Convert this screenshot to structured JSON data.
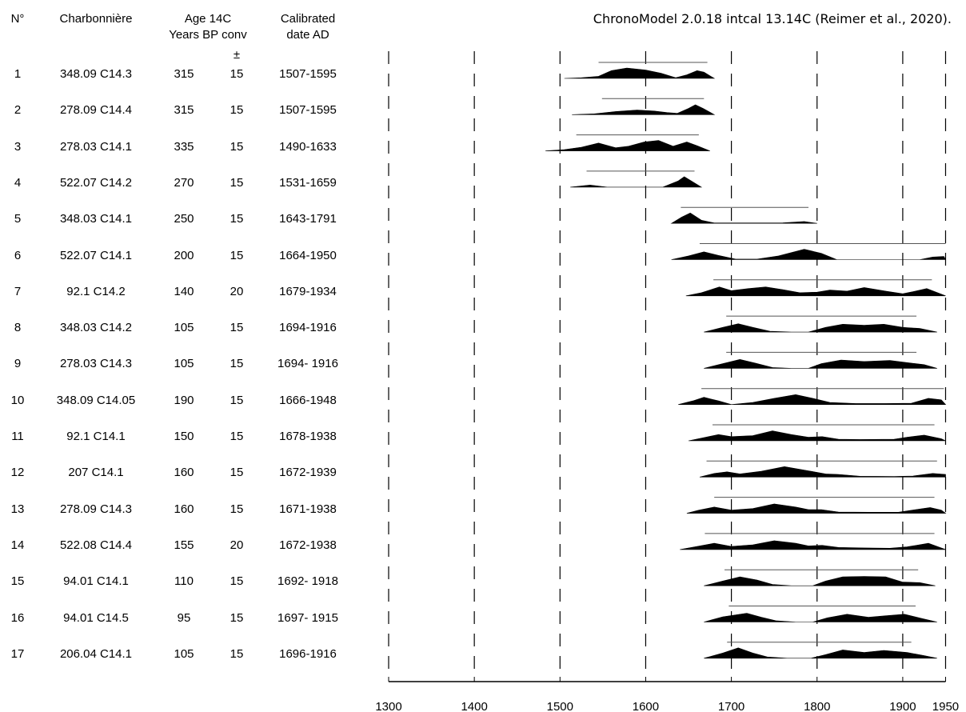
{
  "table": {
    "headers": {
      "n": "N°",
      "charbonniere": "Charbonnière",
      "age_line1": "Age 14C",
      "age_line2": "Years BP conv",
      "cal_line1": "Calibrated",
      "cal_line2": "date AD",
      "error": "±"
    },
    "rows": [
      {
        "n": "1",
        "charbonniere": "348.09 C14.3",
        "age": "315",
        "error": "15",
        "calibrated": "1507-1595"
      },
      {
        "n": "2",
        "charbonniere": "278.09 C14.4",
        "age": "315",
        "error": "15",
        "calibrated": "1507-1595"
      },
      {
        "n": "3",
        "charbonniere": "278.03 C14.1",
        "age": "335",
        "error": "15",
        "calibrated": "1490-1633"
      },
      {
        "n": "4",
        "charbonniere": "522.07 C14.2",
        "age": "270",
        "error": "15",
        "calibrated": "1531-1659"
      },
      {
        "n": "5",
        "charbonniere": "348.03 C14.1",
        "age": "250",
        "error": "15",
        "calibrated": "1643-1791"
      },
      {
        "n": "6",
        "charbonniere": "522.07 C14.1",
        "age": "200",
        "error": "15",
        "calibrated": "1664-1950"
      },
      {
        "n": "7",
        "charbonniere": "92.1 C14.2",
        "age": "140",
        "error": "20",
        "calibrated": "1679-1934"
      },
      {
        "n": "8",
        "charbonniere": "348.03 C14.2",
        "age": "105",
        "error": "15",
        "calibrated": "1694-1916"
      },
      {
        "n": "9",
        "charbonniere": "278.03 C14.3",
        "age": "105",
        "error": "15",
        "calibrated": "1694- 1916"
      },
      {
        "n": "10",
        "charbonniere": "348.09 C14.05",
        "age": "190",
        "error": "15",
        "calibrated": "1666-1948"
      },
      {
        "n": "11",
        "charbonniere": "92.1 C14.1",
        "age": "150",
        "error": "15",
        "calibrated": "1678-1938"
      },
      {
        "n": "12",
        "charbonniere": "207 C14.1",
        "age": "160",
        "error": "15",
        "calibrated": "1672-1939"
      },
      {
        "n": "13",
        "charbonniere": "278.09 C14.3",
        "age": "160",
        "error": "15",
        "calibrated": "1671-1938"
      },
      {
        "n": "14",
        "charbonniere": "522.08 C14.4",
        "age": "155",
        "error": "20",
        "calibrated": "1672-1938"
      },
      {
        "n": "15",
        "charbonniere": "94.01 C14.1",
        "age": "110",
        "error": "15",
        "calibrated": "1692- 1918"
      },
      {
        "n": "16",
        "charbonniere": "94.01 C14.5",
        "age": "95",
        "error": "15",
        "calibrated": "1697- 1915"
      },
      {
        "n": "17",
        "charbonniere": "206.04 C14.1",
        "age": "105",
        "error": "15",
        "calibrated": "1696-1916"
      }
    ]
  },
  "chart_data": {
    "type": "area",
    "title": "ChronoModel 2.0.18 intcal 13.14C (Reimer et al., 2020).",
    "xlabel": "",
    "ylabel": "",
    "xlim": [
      1300,
      1950
    ],
    "x_ticks": [
      1300,
      1400,
      1500,
      1600,
      1700,
      1800,
      1900,
      1950
    ],
    "grid": "dashed vertical lines at 1300, 1400, 1500, 1600, 1700, 1800, 1900, 1950",
    "fill_color": "#000000",
    "series": [
      {
        "hpd": [
          1545,
          1672
        ],
        "density": [
          [
            1505,
            0
          ],
          [
            1525,
            0.06
          ],
          [
            1545,
            0.2
          ],
          [
            1560,
            0.75
          ],
          [
            1578,
            1.0
          ],
          [
            1600,
            0.8
          ],
          [
            1618,
            0.5
          ],
          [
            1635,
            0.06
          ],
          [
            1648,
            0.35
          ],
          [
            1660,
            0.75
          ],
          [
            1668,
            0.6
          ],
          [
            1680,
            0
          ]
        ]
      },
      {
        "hpd": [
          1549,
          1668
        ],
        "density": [
          [
            1514,
            0
          ],
          [
            1540,
            0.08
          ],
          [
            1565,
            0.3
          ],
          [
            1590,
            0.45
          ],
          [
            1610,
            0.35
          ],
          [
            1625,
            0.2
          ],
          [
            1637,
            0.12
          ],
          [
            1650,
            0.6
          ],
          [
            1658,
            0.95
          ],
          [
            1667,
            0.6
          ],
          [
            1680,
            0
          ]
        ]
      },
      {
        "hpd": [
          1519,
          1662
        ],
        "density": [
          [
            1483,
            0
          ],
          [
            1505,
            0.12
          ],
          [
            1525,
            0.35
          ],
          [
            1545,
            0.75
          ],
          [
            1565,
            0.3
          ],
          [
            1580,
            0.45
          ],
          [
            1598,
            0.85
          ],
          [
            1615,
            1.0
          ],
          [
            1632,
            0.45
          ],
          [
            1648,
            0.85
          ],
          [
            1660,
            0.5
          ],
          [
            1675,
            0
          ]
        ]
      },
      {
        "hpd": [
          1531,
          1657
        ],
        "density": [
          [
            1512,
            0
          ],
          [
            1535,
            0.2
          ],
          [
            1555,
            0
          ],
          [
            1620,
            0
          ],
          [
            1638,
            0.6
          ],
          [
            1645,
            1.0
          ],
          [
            1655,
            0.5
          ],
          [
            1665,
            0
          ]
        ]
      },
      {
        "hpd": [
          1641,
          1790
        ],
        "density": [
          [
            1630,
            0
          ],
          [
            1642,
            0.6
          ],
          [
            1652,
            1.0
          ],
          [
            1665,
            0.3
          ],
          [
            1680,
            0.04
          ],
          [
            1760,
            0.05
          ],
          [
            1785,
            0.18
          ],
          [
            1800,
            0
          ]
        ]
      },
      {
        "hpd": [
          1663,
          1950
        ],
        "density": [
          [
            1630,
            0
          ],
          [
            1650,
            0.35
          ],
          [
            1668,
            0.75
          ],
          [
            1685,
            0.4
          ],
          [
            1705,
            0.05
          ],
          [
            1730,
            0.05
          ],
          [
            1755,
            0.35
          ],
          [
            1785,
            1.0
          ],
          [
            1805,
            0.6
          ],
          [
            1823,
            0
          ],
          [
            1920,
            0
          ],
          [
            1935,
            0.25
          ],
          [
            1948,
            0.3
          ],
          [
            1950,
            0
          ]
        ]
      },
      {
        "hpd": [
          1679,
          1934
        ],
        "density": [
          [
            1647,
            0
          ],
          [
            1665,
            0.3
          ],
          [
            1686,
            0.85
          ],
          [
            1700,
            0.5
          ],
          [
            1720,
            0.7
          ],
          [
            1740,
            0.85
          ],
          [
            1760,
            0.6
          ],
          [
            1780,
            0.3
          ],
          [
            1800,
            0.35
          ],
          [
            1815,
            0.55
          ],
          [
            1835,
            0.45
          ],
          [
            1855,
            0.8
          ],
          [
            1880,
            0.45
          ],
          [
            1900,
            0.2
          ],
          [
            1912,
            0.4
          ],
          [
            1928,
            0.7
          ],
          [
            1950,
            0
          ]
        ]
      },
      {
        "hpd": [
          1694,
          1916
        ],
        "density": [
          [
            1668,
            0
          ],
          [
            1690,
            0.45
          ],
          [
            1708,
            0.8
          ],
          [
            1725,
            0.45
          ],
          [
            1745,
            0.08
          ],
          [
            1770,
            0
          ],
          [
            1790,
            0
          ],
          [
            1810,
            0.45
          ],
          [
            1830,
            0.75
          ],
          [
            1855,
            0.65
          ],
          [
            1878,
            0.75
          ],
          [
            1900,
            0.45
          ],
          [
            1920,
            0.35
          ],
          [
            1940,
            0
          ]
        ]
      },
      {
        "hpd": [
          1694,
          1916
        ],
        "density": [
          [
            1668,
            0
          ],
          [
            1690,
            0.45
          ],
          [
            1710,
            0.85
          ],
          [
            1728,
            0.5
          ],
          [
            1748,
            0.08
          ],
          [
            1770,
            0
          ],
          [
            1790,
            0
          ],
          [
            1805,
            0.45
          ],
          [
            1828,
            0.8
          ],
          [
            1855,
            0.65
          ],
          [
            1885,
            0.75
          ],
          [
            1910,
            0.5
          ],
          [
            1925,
            0.35
          ],
          [
            1940,
            0
          ]
        ]
      },
      {
        "hpd": [
          1665,
          1948
        ],
        "density": [
          [
            1638,
            0
          ],
          [
            1655,
            0.35
          ],
          [
            1668,
            0.7
          ],
          [
            1685,
            0.35
          ],
          [
            1700,
            0
          ],
          [
            1725,
            0.2
          ],
          [
            1750,
            0.6
          ],
          [
            1775,
            0.95
          ],
          [
            1795,
            0.6
          ],
          [
            1815,
            0.2
          ],
          [
            1845,
            0.1
          ],
          [
            1880,
            0.1
          ],
          [
            1910,
            0.12
          ],
          [
            1930,
            0.6
          ],
          [
            1945,
            0.45
          ],
          [
            1950,
            0
          ]
        ]
      },
      {
        "hpd": [
          1678,
          1937
        ],
        "density": [
          [
            1650,
            0
          ],
          [
            1670,
            0.35
          ],
          [
            1685,
            0.6
          ],
          [
            1700,
            0.4
          ],
          [
            1725,
            0.5
          ],
          [
            1748,
            0.95
          ],
          [
            1770,
            0.6
          ],
          [
            1790,
            0.35
          ],
          [
            1806,
            0.4
          ],
          [
            1825,
            0.15
          ],
          [
            1850,
            0.12
          ],
          [
            1890,
            0.15
          ],
          [
            1905,
            0.35
          ],
          [
            1925,
            0.55
          ],
          [
            1945,
            0.2
          ],
          [
            1950,
            0
          ]
        ]
      },
      {
        "hpd": [
          1671,
          1940
        ],
        "density": [
          [
            1663,
            0
          ],
          [
            1680,
            0.35
          ],
          [
            1695,
            0.5
          ],
          [
            1710,
            0.3
          ],
          [
            1735,
            0.55
          ],
          [
            1762,
            1.0
          ],
          [
            1790,
            0.6
          ],
          [
            1810,
            0.3
          ],
          [
            1825,
            0.25
          ],
          [
            1850,
            0.08
          ],
          [
            1890,
            0.05
          ],
          [
            1912,
            0.1
          ],
          [
            1935,
            0.35
          ],
          [
            1950,
            0.25
          ]
        ]
      },
      {
        "hpd": [
          1680,
          1937
        ],
        "density": [
          [
            1648,
            0
          ],
          [
            1662,
            0.3
          ],
          [
            1680,
            0.6
          ],
          [
            1700,
            0.3
          ],
          [
            1725,
            0.45
          ],
          [
            1750,
            0.9
          ],
          [
            1775,
            0.6
          ],
          [
            1790,
            0.35
          ],
          [
            1805,
            0.35
          ],
          [
            1825,
            0.12
          ],
          [
            1860,
            0.1
          ],
          [
            1895,
            0.1
          ],
          [
            1915,
            0.35
          ],
          [
            1932,
            0.55
          ],
          [
            1945,
            0.3
          ],
          [
            1950,
            0
          ]
        ]
      },
      {
        "hpd": [
          1669,
          1937
        ],
        "density": [
          [
            1640,
            0
          ],
          [
            1660,
            0.3
          ],
          [
            1680,
            0.6
          ],
          [
            1700,
            0.3
          ],
          [
            1725,
            0.45
          ],
          [
            1750,
            0.85
          ],
          [
            1775,
            0.6
          ],
          [
            1790,
            0.35
          ],
          [
            1806,
            0.4
          ],
          [
            1825,
            0.2
          ],
          [
            1855,
            0.15
          ],
          [
            1885,
            0.12
          ],
          [
            1905,
            0.25
          ],
          [
            1930,
            0.6
          ],
          [
            1950,
            0
          ]
        ]
      },
      {
        "hpd": [
          1692,
          1918
        ],
        "density": [
          [
            1668,
            0
          ],
          [
            1690,
            0.45
          ],
          [
            1710,
            0.85
          ],
          [
            1730,
            0.55
          ],
          [
            1748,
            0.12
          ],
          [
            1770,
            0
          ],
          [
            1795,
            0
          ],
          [
            1810,
            0.45
          ],
          [
            1830,
            0.85
          ],
          [
            1855,
            0.9
          ],
          [
            1880,
            0.85
          ],
          [
            1900,
            0.35
          ],
          [
            1920,
            0.3
          ],
          [
            1938,
            0
          ]
        ]
      },
      {
        "hpd": [
          1697,
          1915
        ],
        "density": [
          [
            1668,
            0
          ],
          [
            1690,
            0.5
          ],
          [
            1718,
            0.85
          ],
          [
            1735,
            0.45
          ],
          [
            1752,
            0.12
          ],
          [
            1775,
            0
          ],
          [
            1795,
            0
          ],
          [
            1812,
            0.4
          ],
          [
            1835,
            0.75
          ],
          [
            1860,
            0.45
          ],
          [
            1880,
            0.6
          ],
          [
            1902,
            0.75
          ],
          [
            1922,
            0.35
          ],
          [
            1940,
            0
          ]
        ]
      },
      {
        "hpd": [
          1695,
          1910
        ],
        "density": [
          [
            1668,
            0
          ],
          [
            1690,
            0.5
          ],
          [
            1708,
            1.0
          ],
          [
            1725,
            0.5
          ],
          [
            1742,
            0.12
          ],
          [
            1765,
            0
          ],
          [
            1793,
            0
          ],
          [
            1810,
            0.35
          ],
          [
            1830,
            0.8
          ],
          [
            1855,
            0.55
          ],
          [
            1878,
            0.75
          ],
          [
            1905,
            0.55
          ],
          [
            1925,
            0.25
          ],
          [
            1940,
            0
          ]
        ]
      }
    ]
  }
}
